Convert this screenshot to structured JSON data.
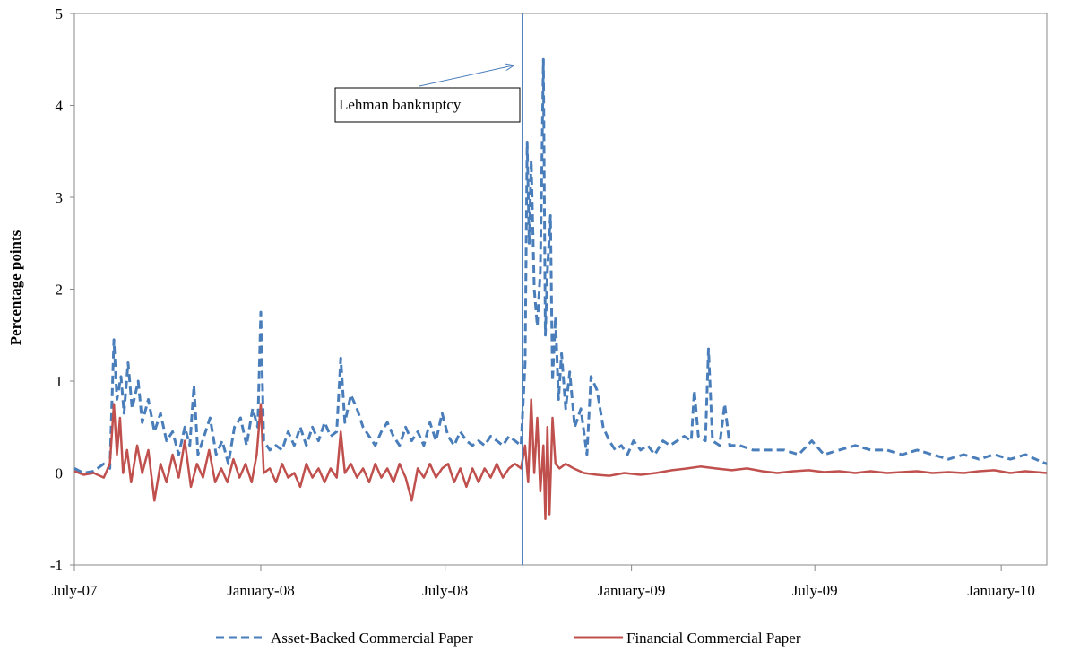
{
  "chart_data": {
    "type": "line",
    "ylabel": "Percentage points",
    "xlabel": "",
    "ylim": [
      -1,
      5
    ],
    "yticks": [
      -1,
      0,
      1,
      2,
      3,
      4,
      5
    ],
    "xlim": [
      "2007-07-01",
      "2010-02-15"
    ],
    "xticks": [
      {
        "date": "2007-07-01",
        "label": "July-07"
      },
      {
        "date": "2008-01-01",
        "label": "January-08"
      },
      {
        "date": "2008-07-01",
        "label": "July-08"
      },
      {
        "date": "2009-01-01",
        "label": "January-09"
      },
      {
        "date": "2009-07-01",
        "label": "July-09"
      },
      {
        "date": "2010-01-01",
        "label": "January-10"
      }
    ],
    "grid": false,
    "legend_position": "bottom",
    "annotation": {
      "text": "Lehman bankruptcy",
      "date": "2008-09-15"
    },
    "series": [
      {
        "name": "Asset-Backed Commercial Paper",
        "color": "#4a7ebb",
        "style": "dashed",
        "points": [
          [
            "2007-07-01",
            0.05
          ],
          [
            "2007-07-10",
            0.0
          ],
          [
            "2007-07-20",
            0.02
          ],
          [
            "2007-07-30",
            0.1
          ],
          [
            "2007-08-05",
            0.05
          ],
          [
            "2007-08-09",
            1.45
          ],
          [
            "2007-08-12",
            0.8
          ],
          [
            "2007-08-16",
            1.05
          ],
          [
            "2007-08-19",
            0.65
          ],
          [
            "2007-08-23",
            1.2
          ],
          [
            "2007-08-27",
            0.7
          ],
          [
            "2007-09-02",
            1.0
          ],
          [
            "2007-09-06",
            0.55
          ],
          [
            "2007-09-12",
            0.8
          ],
          [
            "2007-09-18",
            0.45
          ],
          [
            "2007-09-24",
            0.65
          ],
          [
            "2007-09-30",
            0.35
          ],
          [
            "2007-10-06",
            0.45
          ],
          [
            "2007-10-12",
            0.2
          ],
          [
            "2007-10-18",
            0.5
          ],
          [
            "2007-10-23",
            0.3
          ],
          [
            "2007-10-27",
            0.95
          ],
          [
            "2007-10-31",
            0.2
          ],
          [
            "2007-11-06",
            0.4
          ],
          [
            "2007-11-12",
            0.6
          ],
          [
            "2007-11-18",
            0.2
          ],
          [
            "2007-11-24",
            0.35
          ],
          [
            "2007-11-30",
            0.1
          ],
          [
            "2007-12-06",
            0.5
          ],
          [
            "2007-12-12",
            0.6
          ],
          [
            "2007-12-18",
            0.3
          ],
          [
            "2007-12-24",
            0.7
          ],
          [
            "2007-12-29",
            0.5
          ],
          [
            "2008-01-01",
            1.75
          ],
          [
            "2008-01-04",
            0.35
          ],
          [
            "2008-01-10",
            0.25
          ],
          [
            "2008-01-16",
            0.3
          ],
          [
            "2008-01-22",
            0.25
          ],
          [
            "2008-01-28",
            0.45
          ],
          [
            "2008-02-03",
            0.3
          ],
          [
            "2008-02-09",
            0.5
          ],
          [
            "2008-02-15",
            0.3
          ],
          [
            "2008-02-21",
            0.5
          ],
          [
            "2008-02-27",
            0.35
          ],
          [
            "2008-03-04",
            0.55
          ],
          [
            "2008-03-10",
            0.4
          ],
          [
            "2008-03-16",
            0.45
          ],
          [
            "2008-03-20",
            1.25
          ],
          [
            "2008-03-24",
            0.55
          ],
          [
            "2008-03-30",
            0.85
          ],
          [
            "2008-04-05",
            0.7
          ],
          [
            "2008-04-11",
            0.5
          ],
          [
            "2008-04-17",
            0.4
          ],
          [
            "2008-04-23",
            0.3
          ],
          [
            "2008-04-29",
            0.45
          ],
          [
            "2008-05-05",
            0.55
          ],
          [
            "2008-05-11",
            0.4
          ],
          [
            "2008-05-17",
            0.3
          ],
          [
            "2008-05-23",
            0.5
          ],
          [
            "2008-05-29",
            0.35
          ],
          [
            "2008-06-04",
            0.45
          ],
          [
            "2008-06-10",
            0.3
          ],
          [
            "2008-06-16",
            0.55
          ],
          [
            "2008-06-22",
            0.35
          ],
          [
            "2008-06-28",
            0.65
          ],
          [
            "2008-07-04",
            0.4
          ],
          [
            "2008-07-10",
            0.3
          ],
          [
            "2008-07-16",
            0.45
          ],
          [
            "2008-07-22",
            0.35
          ],
          [
            "2008-07-28",
            0.3
          ],
          [
            "2008-08-03",
            0.35
          ],
          [
            "2008-08-09",
            0.3
          ],
          [
            "2008-08-15",
            0.4
          ],
          [
            "2008-08-21",
            0.35
          ],
          [
            "2008-08-27",
            0.3
          ],
          [
            "2008-09-02",
            0.4
          ],
          [
            "2008-09-08",
            0.35
          ],
          [
            "2008-09-14",
            0.3
          ],
          [
            "2008-09-18",
            1.2
          ],
          [
            "2008-09-20",
            3.6
          ],
          [
            "2008-09-22",
            2.5
          ],
          [
            "2008-09-24",
            3.4
          ],
          [
            "2008-09-27",
            2.0
          ],
          [
            "2008-09-30",
            1.6
          ],
          [
            "2008-10-03",
            2.2
          ],
          [
            "2008-10-06",
            4.5
          ],
          [
            "2008-10-08",
            1.5
          ],
          [
            "2008-10-10",
            2.2
          ],
          [
            "2008-10-13",
            2.8
          ],
          [
            "2008-10-15",
            1.0
          ],
          [
            "2008-10-18",
            1.7
          ],
          [
            "2008-10-21",
            0.8
          ],
          [
            "2008-10-24",
            1.3
          ],
          [
            "2008-10-28",
            0.7
          ],
          [
            "2008-11-01",
            1.1
          ],
          [
            "2008-11-06",
            0.5
          ],
          [
            "2008-11-12",
            0.7
          ],
          [
            "2008-11-18",
            0.2
          ],
          [
            "2008-11-22",
            1.05
          ],
          [
            "2008-11-28",
            0.9
          ],
          [
            "2008-12-04",
            0.5
          ],
          [
            "2008-12-10",
            0.35
          ],
          [
            "2008-12-16",
            0.25
          ],
          [
            "2008-12-22",
            0.3
          ],
          [
            "2008-12-28",
            0.2
          ],
          [
            "2009-01-03",
            0.35
          ],
          [
            "2009-01-10",
            0.25
          ],
          [
            "2009-01-17",
            0.3
          ],
          [
            "2009-01-24",
            0.2
          ],
          [
            "2009-02-01",
            0.35
          ],
          [
            "2009-02-08",
            0.3
          ],
          [
            "2009-02-15",
            0.35
          ],
          [
            "2009-02-22",
            0.4
          ],
          [
            "2009-03-01",
            0.35
          ],
          [
            "2009-03-04",
            0.9
          ],
          [
            "2009-03-08",
            0.4
          ],
          [
            "2009-03-15",
            0.35
          ],
          [
            "2009-03-18",
            1.35
          ],
          [
            "2009-03-22",
            0.35
          ],
          [
            "2009-03-29",
            0.3
          ],
          [
            "2009-04-03",
            0.75
          ],
          [
            "2009-04-08",
            0.3
          ],
          [
            "2009-04-18",
            0.3
          ],
          [
            "2009-05-01",
            0.25
          ],
          [
            "2009-05-15",
            0.25
          ],
          [
            "2009-06-01",
            0.25
          ],
          [
            "2009-06-15",
            0.2
          ],
          [
            "2009-06-28",
            0.35
          ],
          [
            "2009-07-10",
            0.2
          ],
          [
            "2009-07-25",
            0.25
          ],
          [
            "2009-08-10",
            0.3
          ],
          [
            "2009-08-25",
            0.25
          ],
          [
            "2009-09-10",
            0.25
          ],
          [
            "2009-09-25",
            0.2
          ],
          [
            "2009-10-10",
            0.25
          ],
          [
            "2009-10-25",
            0.2
          ],
          [
            "2009-11-10",
            0.15
          ],
          [
            "2009-11-25",
            0.2
          ],
          [
            "2009-12-10",
            0.15
          ],
          [
            "2009-12-25",
            0.2
          ],
          [
            "2010-01-10",
            0.15
          ],
          [
            "2010-01-25",
            0.2
          ],
          [
            "2010-02-10",
            0.12
          ],
          [
            "2010-02-15",
            0.1
          ]
        ]
      },
      {
        "name": "Financial Commercial Paper",
        "color": "#c0504d",
        "style": "solid",
        "points": [
          [
            "2007-07-01",
            0.02
          ],
          [
            "2007-07-10",
            -0.02
          ],
          [
            "2007-07-20",
            0.0
          ],
          [
            "2007-07-30",
            -0.05
          ],
          [
            "2007-08-05",
            0.1
          ],
          [
            "2007-08-09",
            0.75
          ],
          [
            "2007-08-12",
            0.2
          ],
          [
            "2007-08-15",
            0.6
          ],
          [
            "2007-08-18",
            0.0
          ],
          [
            "2007-08-22",
            0.25
          ],
          [
            "2007-08-26",
            -0.1
          ],
          [
            "2007-09-01",
            0.3
          ],
          [
            "2007-09-06",
            0.0
          ],
          [
            "2007-09-12",
            0.25
          ],
          [
            "2007-09-18",
            -0.3
          ],
          [
            "2007-09-24",
            0.1
          ],
          [
            "2007-09-30",
            -0.1
          ],
          [
            "2007-10-06",
            0.2
          ],
          [
            "2007-10-12",
            -0.05
          ],
          [
            "2007-10-18",
            0.35
          ],
          [
            "2007-10-24",
            -0.15
          ],
          [
            "2007-10-30",
            0.1
          ],
          [
            "2007-11-05",
            -0.05
          ],
          [
            "2007-11-11",
            0.25
          ],
          [
            "2007-11-17",
            -0.1
          ],
          [
            "2007-11-23",
            0.05
          ],
          [
            "2007-11-29",
            -0.1
          ],
          [
            "2007-12-05",
            0.15
          ],
          [
            "2007-12-11",
            -0.05
          ],
          [
            "2007-12-17",
            0.1
          ],
          [
            "2007-12-23",
            -0.1
          ],
          [
            "2007-12-28",
            0.2
          ],
          [
            "2008-01-01",
            0.75
          ],
          [
            "2008-01-04",
            0.0
          ],
          [
            "2008-01-10",
            0.05
          ],
          [
            "2008-01-16",
            -0.1
          ],
          [
            "2008-01-22",
            0.1
          ],
          [
            "2008-01-28",
            -0.05
          ],
          [
            "2008-02-03",
            0.0
          ],
          [
            "2008-02-09",
            -0.15
          ],
          [
            "2008-02-15",
            0.1
          ],
          [
            "2008-02-21",
            -0.05
          ],
          [
            "2008-02-27",
            0.05
          ],
          [
            "2008-03-04",
            -0.1
          ],
          [
            "2008-03-10",
            0.05
          ],
          [
            "2008-03-16",
            -0.05
          ],
          [
            "2008-03-20",
            0.45
          ],
          [
            "2008-03-24",
            0.0
          ],
          [
            "2008-03-30",
            0.1
          ],
          [
            "2008-04-05",
            -0.05
          ],
          [
            "2008-04-11",
            0.05
          ],
          [
            "2008-04-17",
            -0.1
          ],
          [
            "2008-04-23",
            0.1
          ],
          [
            "2008-04-29",
            -0.05
          ],
          [
            "2008-05-05",
            0.05
          ],
          [
            "2008-05-11",
            -0.1
          ],
          [
            "2008-05-17",
            0.1
          ],
          [
            "2008-05-23",
            -0.05
          ],
          [
            "2008-05-29",
            -0.3
          ],
          [
            "2008-06-04",
            0.05
          ],
          [
            "2008-06-10",
            -0.05
          ],
          [
            "2008-06-16",
            0.1
          ],
          [
            "2008-06-22",
            -0.05
          ],
          [
            "2008-06-28",
            0.05
          ],
          [
            "2008-07-04",
            0.1
          ],
          [
            "2008-07-10",
            -0.1
          ],
          [
            "2008-07-16",
            0.05
          ],
          [
            "2008-07-22",
            -0.15
          ],
          [
            "2008-07-28",
            0.05
          ],
          [
            "2008-08-03",
            -0.1
          ],
          [
            "2008-08-09",
            0.05
          ],
          [
            "2008-08-15",
            -0.05
          ],
          [
            "2008-08-21",
            0.1
          ],
          [
            "2008-08-27",
            -0.05
          ],
          [
            "2008-09-02",
            0.05
          ],
          [
            "2008-09-08",
            0.1
          ],
          [
            "2008-09-14",
            0.05
          ],
          [
            "2008-09-18",
            0.3
          ],
          [
            "2008-09-21",
            -0.1
          ],
          [
            "2008-09-24",
            0.8
          ],
          [
            "2008-09-27",
            0.0
          ],
          [
            "2008-09-30",
            0.6
          ],
          [
            "2008-10-03",
            -0.2
          ],
          [
            "2008-10-06",
            0.3
          ],
          [
            "2008-10-08",
            -0.5
          ],
          [
            "2008-10-10",
            0.5
          ],
          [
            "2008-10-12",
            -0.45
          ],
          [
            "2008-10-15",
            0.6
          ],
          [
            "2008-10-18",
            0.1
          ],
          [
            "2008-10-22",
            0.05
          ],
          [
            "2008-10-28",
            0.1
          ],
          [
            "2008-11-05",
            0.05
          ],
          [
            "2008-11-15",
            0.0
          ],
          [
            "2008-11-28",
            -0.02
          ],
          [
            "2008-12-10",
            -0.03
          ],
          [
            "2008-12-25",
            0.0
          ],
          [
            "2009-01-10",
            -0.02
          ],
          [
            "2009-01-25",
            0.0
          ],
          [
            "2009-02-10",
            0.03
          ],
          [
            "2009-02-25",
            0.05
          ],
          [
            "2009-03-10",
            0.07
          ],
          [
            "2009-03-25",
            0.05
          ],
          [
            "2009-04-10",
            0.03
          ],
          [
            "2009-04-25",
            0.05
          ],
          [
            "2009-05-10",
            0.02
          ],
          [
            "2009-05-25",
            0.0
          ],
          [
            "2009-06-10",
            0.02
          ],
          [
            "2009-06-25",
            0.03
          ],
          [
            "2009-07-10",
            0.01
          ],
          [
            "2009-07-25",
            0.02
          ],
          [
            "2009-08-10",
            0.0
          ],
          [
            "2009-08-25",
            0.02
          ],
          [
            "2009-09-10",
            0.0
          ],
          [
            "2009-09-25",
            0.01
          ],
          [
            "2009-10-10",
            0.02
          ],
          [
            "2009-10-25",
            0.0
          ],
          [
            "2009-11-10",
            0.01
          ],
          [
            "2009-11-25",
            0.0
          ],
          [
            "2009-12-10",
            0.02
          ],
          [
            "2009-12-25",
            0.03
          ],
          [
            "2010-01-10",
            0.0
          ],
          [
            "2010-01-25",
            0.02
          ],
          [
            "2010-02-15",
            0.0
          ]
        ]
      }
    ]
  }
}
